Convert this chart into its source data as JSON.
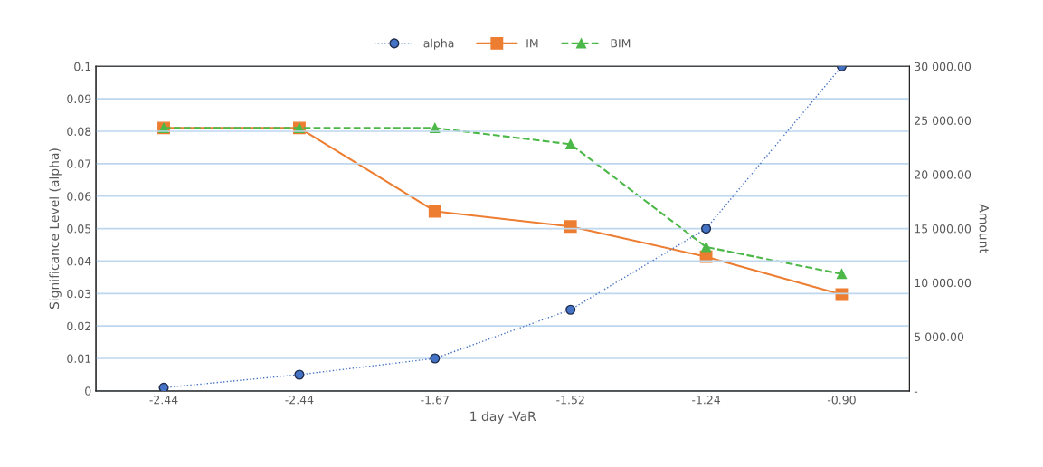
{
  "chart_data": {
    "type": "line",
    "xlabel": "1 day -VaR",
    "ylabel": "Significance Level (alpha)",
    "y2label": "Amount",
    "categories": [
      "-2.44",
      "-2.44",
      "-1.67",
      "-1.52",
      "-1.24",
      "-0.90"
    ],
    "series": [
      {
        "name": "alpha",
        "color": "#4472c4",
        "values": [
          0.001,
          0.005,
          0.01,
          0.025,
          0.05,
          0.1
        ],
        "marker": "circle",
        "line_style": "dotted"
      },
      {
        "name": "IM",
        "color": "#ed7d31",
        "values": [
          24300,
          24300,
          16600,
          15200,
          12400,
          8900
        ],
        "axis": "y2",
        "marker": "square",
        "line_style": "solid"
      },
      {
        "name": "BIM",
        "color": "#4cb848",
        "values": [
          24300,
          24300,
          24300,
          22800,
          13300,
          10800
        ],
        "axis": "y2",
        "marker": "triangle",
        "line_style": "dashed"
      }
    ],
    "ylim": [
      0,
      0.1
    ],
    "yticks": [
      0,
      0.01,
      0.02,
      0.03,
      0.04,
      0.05,
      0.06,
      0.07,
      0.08,
      0.09,
      0.1
    ],
    "y2lim": [
      0,
      30000
    ],
    "y2ticks": [
      {
        "value": 0,
        "label": "-"
      },
      {
        "value": 5000,
        "label": "5 000.00"
      },
      {
        "value": 10000,
        "label": "10 000.00"
      },
      {
        "value": 15000,
        "label": "15 000.00"
      },
      {
        "value": 20000,
        "label": "20 000.00"
      },
      {
        "value": 25000,
        "label": "25 000.00"
      },
      {
        "value": 30000,
        "label": "30 000.00"
      }
    ],
    "grid": "y",
    "legend": "top"
  }
}
